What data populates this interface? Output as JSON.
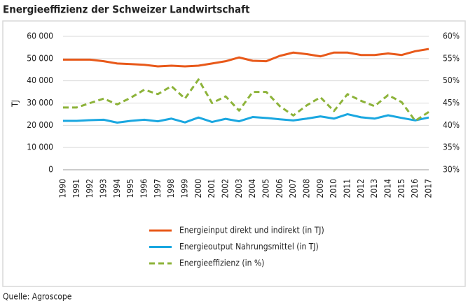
{
  "chart_data": {
    "type": "line",
    "title": "Energieeffizienz der Schweizer Landwirtschaft",
    "ylabel": "TJ",
    "categories": [
      "1990",
      "1991",
      "1992",
      "1993",
      "1994",
      "1995",
      "1996",
      "1997",
      "1998",
      "1999",
      "2000",
      "2001",
      "2002",
      "2003",
      "2004",
      "2005",
      "2006",
      "2007",
      "2008",
      "2009",
      "2010",
      "2011",
      "2012",
      "2013",
      "2014",
      "2015",
      "2016",
      "2017"
    ],
    "series": [
      {
        "name": "Energieinput direkt und indirekt (in TJ)",
        "color": "#e8591a",
        "linestyle": "solid",
        "values": [
          49500,
          49500,
          49500,
          48800,
          47800,
          47500,
          47200,
          46500,
          46800,
          46500,
          46800,
          47800,
          48800,
          50500,
          49000,
          48800,
          51200,
          52700,
          52000,
          51000,
          52700,
          52700,
          51600,
          51600,
          52300,
          51600,
          53300,
          54300
        ]
      },
      {
        "name": "Energieoutput Nahrungsmittel (in TJ)",
        "color": "#1aa7e0",
        "linestyle": "solid",
        "values": [
          22000,
          22000,
          22300,
          22500,
          21200,
          22000,
          22500,
          21800,
          23000,
          21300,
          23500,
          21500,
          22900,
          21800,
          23700,
          23300,
          22700,
          22200,
          23000,
          24000,
          23000,
          25000,
          23600,
          23000,
          24500,
          23300,
          22200,
          23500
        ]
      },
      {
        "name": "Energieeffizienz (in %)",
        "color": "#8db33a",
        "linestyle": "dashed",
        "axis": "y2",
        "values": [
          44,
          44,
          45,
          46,
          44.7,
          46.2,
          48,
          47,
          48.8,
          46,
          50.3,
          45,
          46.5,
          43.3,
          47.5,
          47.5,
          44.3,
          42.2,
          44.5,
          46.3,
          43.2,
          47,
          45.5,
          44.3,
          46.8,
          45.2,
          41,
          43
        ]
      }
    ],
    "ylim": [
      0,
      60000
    ],
    "yticks": [
      0,
      {
        "value": 10000,
        "label": "10 000"
      },
      {
        "value": 20000,
        "label": "20 000"
      },
      {
        "value": 30000,
        "label": "30 000"
      },
      {
        "value": 40000,
        "label": "40 000"
      },
      {
        "value": 50000,
        "label": "50 000"
      },
      {
        "value": 60000,
        "label": "60 000"
      }
    ],
    "y2lim": [
      30,
      60
    ],
    "y2ticks": [
      {
        "value": 30,
        "label": "30%"
      },
      {
        "value": 35,
        "label": "35%"
      },
      {
        "value": 40,
        "label": "40%"
      },
      {
        "value": 45,
        "label": "45%"
      },
      {
        "value": 50,
        "label": "50%"
      },
      {
        "value": 55,
        "label": "55%"
      },
      {
        "value": 60,
        "label": "60%"
      }
    ],
    "grid": true,
    "source": "Quelle: Agroscope"
  }
}
